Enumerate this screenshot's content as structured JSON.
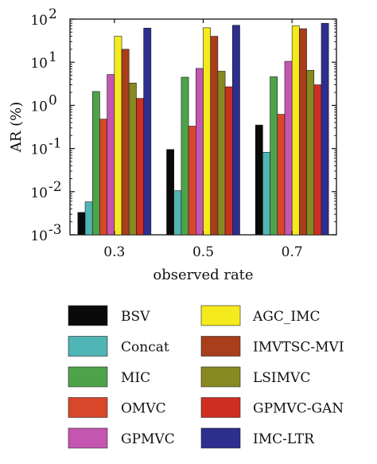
{
  "chart_data": {
    "type": "bar",
    "scale": "log",
    "xlabel": "observed rate",
    "ylabel": "AR (%)",
    "ylim": [
      0.001,
      100
    ],
    "grid": false,
    "legend_position": "bottom",
    "categories": [
      "0.3",
      "0.5",
      "0.7"
    ],
    "y_ticks": [
      {
        "value": 0.001,
        "base": "10",
        "exp": "-3"
      },
      {
        "value": 0.01,
        "base": "10",
        "exp": "-2"
      },
      {
        "value": 0.1,
        "base": "10",
        "exp": "-1"
      },
      {
        "value": 1,
        "base": "10",
        "exp": "0"
      },
      {
        "value": 10,
        "base": "10",
        "exp": "1"
      },
      {
        "value": 100,
        "base": "10",
        "exp": "2"
      }
    ],
    "series": [
      {
        "name": "BSV",
        "color": "#0a0a0a",
        "values": [
          0.0033,
          0.095,
          0.35
        ]
      },
      {
        "name": "Concat",
        "color": "#4fb5b5",
        "values": [
          0.0058,
          0.0105,
          0.082
        ]
      },
      {
        "name": "MIC",
        "color": "#4ea34a",
        "values": [
          2.1,
          4.5,
          4.6
        ]
      },
      {
        "name": "OMVC",
        "color": "#d8472a",
        "values": [
          0.48,
          0.33,
          0.62
        ]
      },
      {
        "name": "GPMVC",
        "color": "#c455b0",
        "values": [
          5.2,
          7.2,
          10.5
        ]
      },
      {
        "name": "AGC_IMC",
        "color": "#f4ea1e",
        "values": [
          40,
          63,
          70
        ]
      },
      {
        "name": "IMVTSC-MVI",
        "color": "#a93e1c",
        "values": [
          20,
          40,
          60
        ]
      },
      {
        "name": "LSIMVC",
        "color": "#868a21",
        "values": [
          3.3,
          6.2,
          6.5
        ]
      },
      {
        "name": "GPMVC-GAN",
        "color": "#cf2e22",
        "values": [
          1.45,
          2.7,
          3.0
        ]
      },
      {
        "name": "IMC-LTR",
        "color": "#2e2e8f",
        "values": [
          62,
          72,
          80
        ]
      }
    ]
  }
}
